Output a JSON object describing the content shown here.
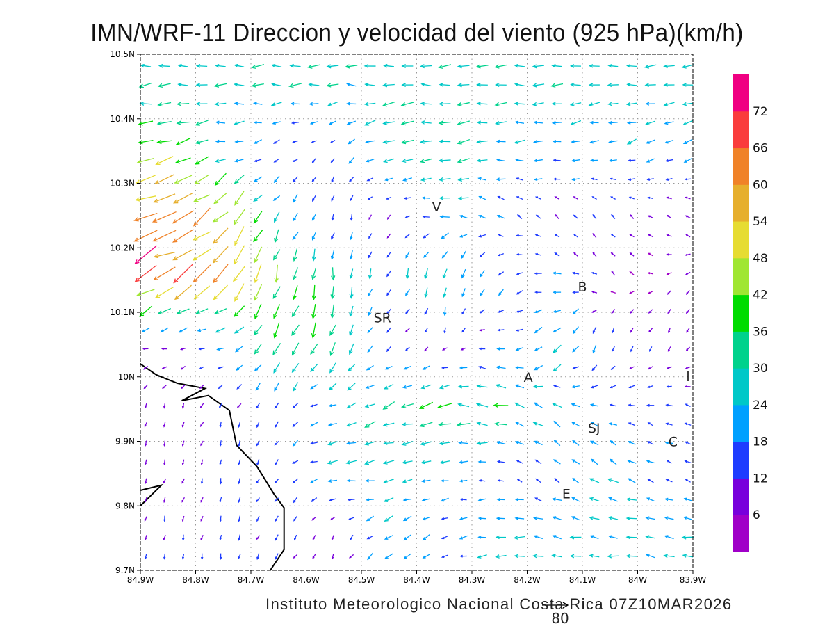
{
  "title": "IMN/WRF-11 Direccion y velocidad del viento (925 hPa)(km/h)",
  "footer": "Instituto Meteorologico Nacional Costa Rica 07Z10MAR2026",
  "reference_vector": {
    "value": 80,
    "label": "80"
  },
  "chart_data": {
    "type": "vector-field",
    "units": "km/h",
    "level": "925 hPa",
    "xlim": [
      -84.9,
      -83.9
    ],
    "ylim": [
      9.7,
      10.5
    ],
    "x_ticks": [
      "84.9W",
      "84.8W",
      "84.7W",
      "84.6W",
      "84.5W",
      "84.4W",
      "84.3W",
      "84.2W",
      "84.1W",
      "84W",
      "83.9W"
    ],
    "y_ticks": [
      "10.5N",
      "10.4N",
      "10.3N",
      "10.2N",
      "10.1N",
      "10N",
      "9.9N",
      "9.8N",
      "9.7N"
    ],
    "grid": true,
    "colorbar": {
      "labels": [
        "6",
        "12",
        "18",
        "24",
        "30",
        "36",
        "42",
        "48",
        "54",
        "60",
        "66",
        "72"
      ],
      "colors": [
        "#a000c8",
        "#7800dc",
        "#1e3cff",
        "#00a0ff",
        "#00c8c8",
        "#00d28c",
        "#00dc00",
        "#a0e632",
        "#e6dc32",
        "#e6af2d",
        "#f08228",
        "#fa3c3c",
        "#f00082"
      ]
    },
    "wind_coarse_grid": {
      "lons": [
        -84.85,
        -84.75,
        -84.65,
        -84.55,
        -84.45,
        -84.35,
        -84.25,
        -84.15,
        -84.05,
        -83.95
      ],
      "lats": [
        10.45,
        10.35,
        10.25,
        10.15,
        10.05,
        9.95,
        9.85,
        9.75
      ],
      "u": [
        [
          -30,
          -28,
          -28,
          -28,
          -28,
          -28,
          -28,
          -27,
          -26,
          -26
        ],
        [
          -40,
          -25,
          -12,
          -8,
          -30,
          -30,
          -25,
          -22,
          -22,
          -20
        ],
        [
          -60,
          -35,
          -15,
          -5,
          -5,
          -25,
          -15,
          -8,
          -10,
          -8
        ],
        [
          -55,
          -40,
          -10,
          -3,
          -8,
          -5,
          -12,
          -20,
          -5,
          -5
        ],
        [
          -8,
          -20,
          -20,
          -15,
          -10,
          -5,
          -15,
          -20,
          -5,
          -5
        ],
        [
          -3,
          -5,
          -10,
          -20,
          -30,
          -35,
          -35,
          -20,
          -18,
          -15
        ],
        [
          -3,
          -3,
          -8,
          -25,
          -25,
          -20,
          -10,
          -15,
          -20,
          -15
        ],
        [
          -3,
          -3,
          -8,
          -3,
          -20,
          -15,
          -25,
          -25,
          -25,
          -25
        ]
      ],
      "v": [
        [
          -3,
          -1,
          0,
          0,
          0,
          0,
          0,
          0,
          0,
          0
        ],
        [
          -10,
          -5,
          -8,
          -10,
          -8,
          -2,
          -3,
          -5,
          -8,
          -8
        ],
        [
          -25,
          -40,
          -20,
          -15,
          -8,
          0,
          10,
          8,
          10,
          5
        ],
        [
          -30,
          -40,
          -40,
          -30,
          -20,
          -30,
          -15,
          5,
          5,
          -3
        ],
        [
          0,
          -5,
          -30,
          -30,
          -8,
          -5,
          5,
          -25,
          -15,
          -10
        ],
        [
          -8,
          -12,
          -10,
          -5,
          -15,
          -3,
          5,
          15,
          3,
          5
        ],
        [
          -10,
          -12,
          -12,
          -5,
          -3,
          -2,
          5,
          10,
          15,
          5
        ],
        [
          -12,
          -12,
          -12,
          -6,
          -15,
          -8,
          0,
          5,
          2,
          5
        ]
      ]
    },
    "places": [
      {
        "label": "V",
        "lon": -84.364,
        "lat": 10.264
      },
      {
        "label": "SR",
        "lon": -84.462,
        "lat": 10.092
      },
      {
        "label": "B",
        "lon": -84.1,
        "lat": 10.14
      },
      {
        "label": "A",
        "lon": -84.198,
        "lat": 10.0
      },
      {
        "label": "SJ",
        "lon": -84.079,
        "lat": 9.921
      },
      {
        "label": "C",
        "lon": -83.936,
        "lat": 9.9
      },
      {
        "label": "E",
        "lon": -84.129,
        "lat": 9.819
      }
    ],
    "coastline": [
      [
        [
          -84.9,
          10.02
        ],
        [
          -84.871,
          10.003
        ],
        [
          -84.833,
          9.99
        ],
        [
          -84.783,
          9.982
        ],
        [
          -84.825,
          9.963
        ],
        [
          -84.777,
          9.971
        ],
        [
          -84.739,
          9.948
        ],
        [
          -84.726,
          9.894
        ],
        [
          -84.689,
          9.861
        ],
        [
          -84.658,
          9.818
        ],
        [
          -84.64,
          9.797
        ],
        [
          -84.64,
          9.732
        ],
        [
          -84.665,
          9.7
        ]
      ],
      [
        [
          -84.9,
          9.824
        ],
        [
          -84.862,
          9.832
        ],
        [
          -84.9,
          9.8
        ]
      ]
    ]
  }
}
